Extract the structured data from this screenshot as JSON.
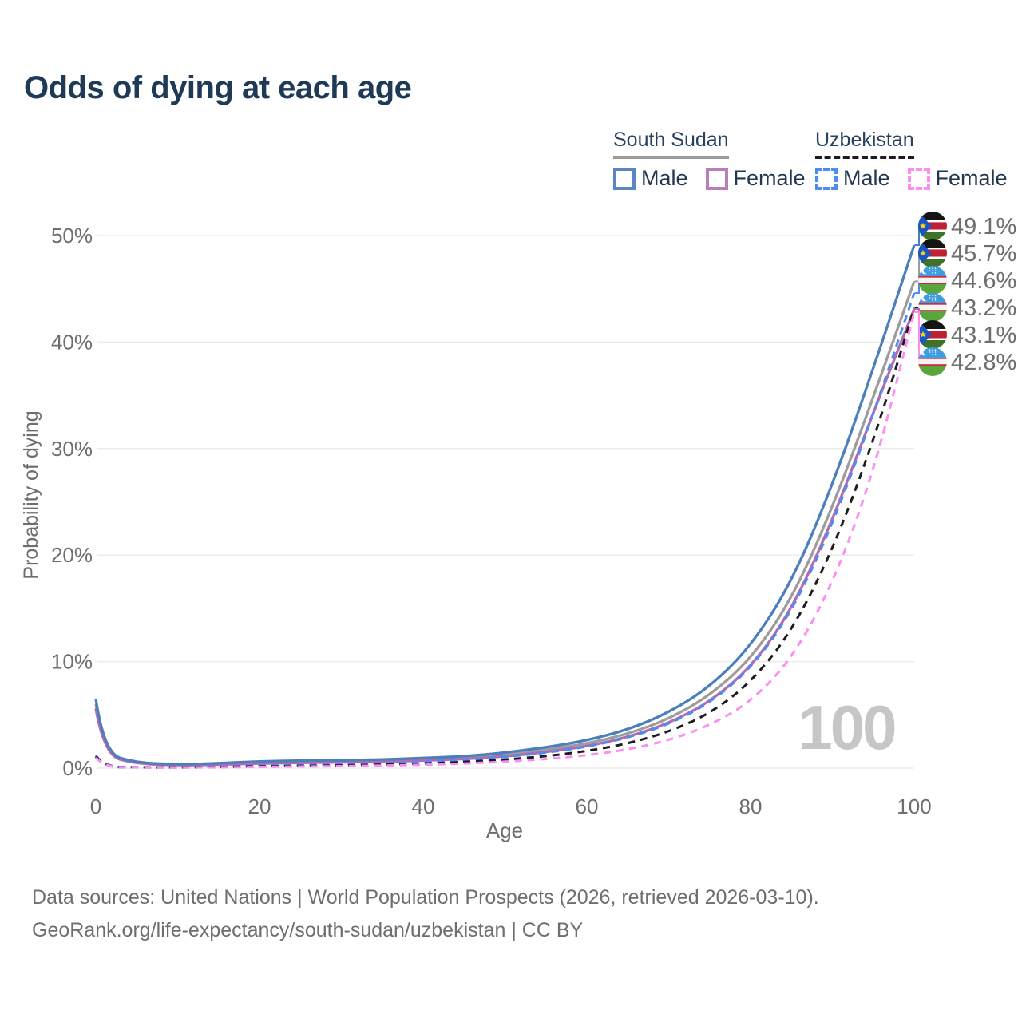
{
  "title": "Odds of dying at each age",
  "legend": {
    "groups": [
      {
        "title": "South Sudan",
        "line_style": "solid",
        "line_color": "#9c9c9c",
        "items": [
          {
            "label": "Male",
            "color": "#5b86c4",
            "box_style": "solid"
          },
          {
            "label": "Female",
            "color": "#b97eb9",
            "box_style": "solid"
          }
        ]
      },
      {
        "title": "Uzbekistan",
        "line_style": "dashed",
        "line_color": "#1c1c1c",
        "items": [
          {
            "label": "Male",
            "color": "#4d8cf5",
            "box_style": "dashed"
          },
          {
            "label": "Female",
            "color": "#fc8df2",
            "box_style": "dashed"
          }
        ]
      }
    ]
  },
  "watermark": "100",
  "footer": {
    "line1": "Data sources: United Nations | World Population Prospects (2026, retrieved 2026-03-10).",
    "line2": "GeoRank.org/life-expectancy/south-sudan/uzbekistan | CC BY"
  },
  "chart_data": {
    "type": "line",
    "title": "Odds of dying at each age",
    "xlabel": "Age",
    "ylabel": "Probability of dying",
    "xlim": [
      0,
      100
    ],
    "ylim": [
      0,
      50
    ],
    "grid": "horizontal",
    "legend_position": "top-right",
    "x_ticks": [
      0,
      20,
      40,
      60,
      80,
      100
    ],
    "y_ticks": [
      {
        "value": 0,
        "label": "0%"
      },
      {
        "value": 10,
        "label": "10%"
      },
      {
        "value": 20,
        "label": "20%"
      },
      {
        "value": 30,
        "label": "30%"
      },
      {
        "value": 40,
        "label": "40%"
      },
      {
        "value": 50,
        "label": "50%"
      }
    ],
    "x": [
      0,
      1,
      5,
      10,
      15,
      20,
      25,
      30,
      35,
      40,
      45,
      50,
      55,
      60,
      65,
      70,
      75,
      80,
      85,
      90,
      95,
      100
    ],
    "series": [
      {
        "name": "South Sudan Male",
        "flag": "south-sudan",
        "style": "solid",
        "color": "#4a7ebd",
        "end_label": "49.1%",
        "end_value": 49.1,
        "values": [
          6.5,
          1.4,
          0.5,
          0.35,
          0.45,
          0.65,
          0.7,
          0.75,
          0.8,
          0.95,
          1.1,
          1.45,
          1.95,
          2.6,
          3.6,
          5.2,
          7.6,
          11.4,
          17.4,
          26.5,
          37.5,
          49.1
        ]
      },
      {
        "name": "South Sudan",
        "flag": "south-sudan",
        "style": "solid",
        "color": "#9c9c9c",
        "end_label": "45.7%",
        "end_value": 45.7,
        "values": [
          6.0,
          1.3,
          0.45,
          0.3,
          0.38,
          0.55,
          0.6,
          0.65,
          0.7,
          0.82,
          0.98,
          1.25,
          1.7,
          2.3,
          3.2,
          4.6,
          6.8,
          10.2,
          15.8,
          24.4,
          34.8,
          45.7
        ]
      },
      {
        "name": "Uzbekistan Male",
        "flag": "uzbekistan",
        "style": "dashed",
        "color": "#4d8cf5",
        "end_label": "44.6%",
        "end_value": 44.6,
        "values": [
          1.2,
          0.15,
          0.08,
          0.07,
          0.12,
          0.22,
          0.28,
          0.35,
          0.45,
          0.58,
          0.78,
          1.05,
          1.45,
          2.0,
          2.85,
          4.1,
          6.1,
          9.3,
          14.6,
          22.8,
          33.2,
          44.6
        ]
      },
      {
        "name": "Uzbekistan",
        "flag": "uzbekistan",
        "style": "dashed",
        "color": "#1c1c1c",
        "end_label": "43.2%",
        "end_value": 43.2,
        "values": [
          1.1,
          0.13,
          0.07,
          0.06,
          0.1,
          0.17,
          0.21,
          0.26,
          0.33,
          0.43,
          0.58,
          0.8,
          1.12,
          1.6,
          2.3,
          3.4,
          5.1,
          8.0,
          12.8,
          20.4,
          30.6,
          43.2
        ]
      },
      {
        "name": "South Sudan Female",
        "flag": "south-sudan",
        "style": "solid",
        "color": "#b36ab0",
        "end_label": "43.1%",
        "end_value": 43.1,
        "values": [
          5.6,
          1.2,
          0.4,
          0.27,
          0.32,
          0.45,
          0.5,
          0.55,
          0.6,
          0.72,
          0.85,
          1.1,
          1.5,
          2.05,
          2.9,
          4.2,
          6.2,
          9.4,
          14.8,
          23.2,
          33.4,
          43.1
        ]
      },
      {
        "name": "Uzbekistan Female",
        "flag": "uzbekistan",
        "style": "dashed",
        "color": "#fc8df2",
        "end_label": "42.8%",
        "end_value": 42.8,
        "values": [
          1.0,
          0.12,
          0.06,
          0.05,
          0.08,
          0.12,
          0.15,
          0.19,
          0.24,
          0.32,
          0.43,
          0.6,
          0.85,
          1.2,
          1.75,
          2.6,
          4.0,
          6.2,
          10.2,
          17.2,
          27.6,
          42.8
        ]
      }
    ]
  }
}
